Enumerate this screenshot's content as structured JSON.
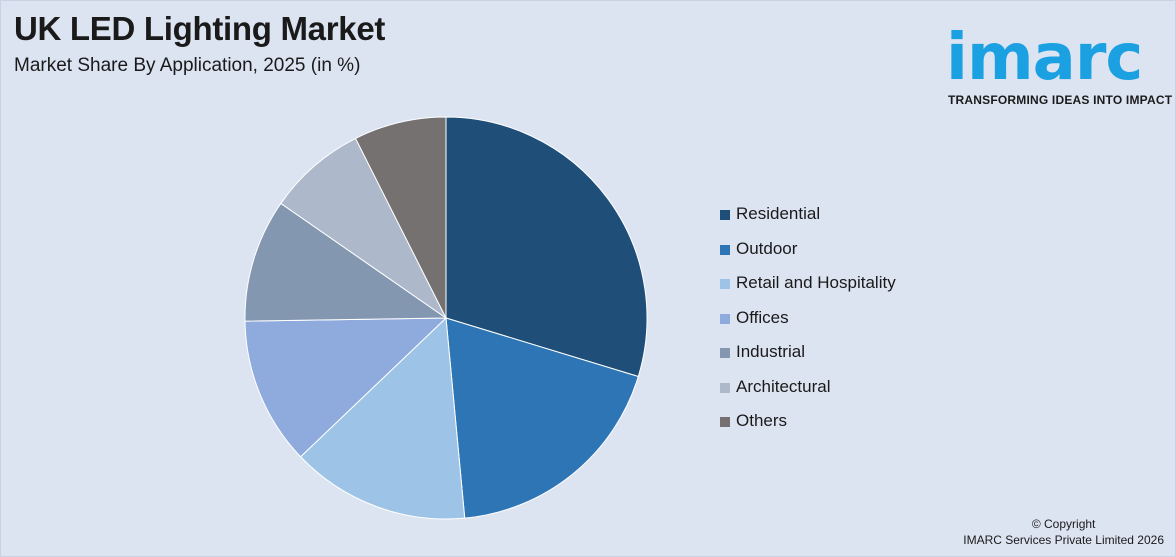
{
  "header": {
    "title": "UK LED Lighting Market",
    "subtitle": "Market Share By Application, 2025 (in %)"
  },
  "logo": {
    "wordmark": "imarc",
    "tagline": "TRANSFORMING IDEAS INTO IMPACT",
    "color": "#1ba1e2"
  },
  "chart_data": {
    "type": "pie",
    "title": "UK LED Lighting Market",
    "subtitle": "Market Share By Application, 2025 (in %)",
    "legend_position": "right",
    "slices": [
      {
        "label": "Residential",
        "value": 30.0,
        "color": "#1f4e79"
      },
      {
        "label": "Outdoor",
        "value": 19.0,
        "color": "#2e75b6"
      },
      {
        "label": "Retail and Hospitality",
        "value": 14.5,
        "color": "#9dc3e6"
      },
      {
        "label": "Offices",
        "value": 12.0,
        "color": "#8faadc"
      },
      {
        "label": "Industrial",
        "value": 10.0,
        "color": "#8497b0"
      },
      {
        "label": "Architectural",
        "value": 8.0,
        "color": "#adb9ca"
      },
      {
        "label": "Others",
        "value": 7.5,
        "color": "#767171"
      }
    ]
  },
  "footer": {
    "copyright_line1": "© Copyright",
    "copyright_line2": "IMARC Services Private Limited 2026"
  }
}
